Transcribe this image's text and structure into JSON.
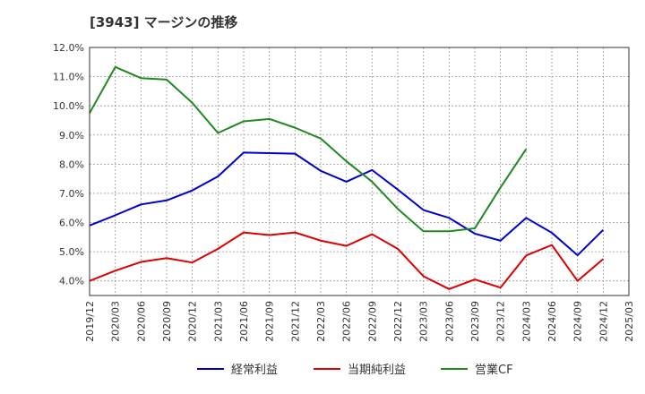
{
  "chart_data": {
    "type": "line",
    "title": "[3943]  マージンの推移",
    "xlabel": "",
    "ylabel": "",
    "ylim": [
      3.5,
      12.0
    ],
    "y_ticks": [
      "4.0%",
      "5.0%",
      "6.0%",
      "7.0%",
      "8.0%",
      "9.0%",
      "10.0%",
      "11.0%",
      "12.0%"
    ],
    "y_tick_values": [
      4,
      5,
      6,
      7,
      8,
      9,
      10,
      11,
      12
    ],
    "categories": [
      "2019/12",
      "2020/03",
      "2020/06",
      "2020/09",
      "2020/12",
      "2021/03",
      "2021/06",
      "2021/09",
      "2021/12",
      "2022/03",
      "2022/06",
      "2022/09",
      "2022/12",
      "2023/03",
      "2023/06",
      "2023/09",
      "2023/12",
      "2024/03",
      "2024/06",
      "2024/09",
      "2024/12",
      "2025/03"
    ],
    "grid": true,
    "legend_position": "bottom",
    "series": [
      {
        "name": "経常利益",
        "color": "#0000cc",
        "values": [
          5.9,
          6.25,
          6.62,
          6.76,
          7.1,
          7.58,
          8.4,
          8.38,
          8.36,
          7.77,
          7.4,
          7.8,
          7.13,
          6.43,
          6.16,
          5.62,
          5.38,
          6.16,
          5.65,
          4.88,
          5.75,
          null
        ]
      },
      {
        "name": "当期純利益",
        "color": "#dd0000",
        "values": [
          4.0,
          4.35,
          4.65,
          4.78,
          4.63,
          5.1,
          5.66,
          5.57,
          5.66,
          5.38,
          5.2,
          5.6,
          5.1,
          4.16,
          3.72,
          4.05,
          3.77,
          4.87,
          5.23,
          4.0,
          4.75,
          null
        ]
      },
      {
        "name": "営業CF",
        "color": "#228822",
        "values": [
          9.75,
          11.33,
          10.95,
          10.9,
          10.1,
          9.07,
          9.47,
          9.55,
          9.25,
          8.88,
          8.1,
          7.4,
          6.47,
          5.7,
          5.7,
          5.8,
          7.2,
          8.52,
          null,
          null,
          null,
          null
        ]
      }
    ]
  }
}
